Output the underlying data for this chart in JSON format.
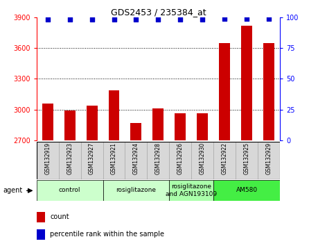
{
  "title": "GDS2453 / 235384_at",
  "samples": [
    "GSM132919",
    "GSM132923",
    "GSM132927",
    "GSM132921",
    "GSM132924",
    "GSM132928",
    "GSM132926",
    "GSM132930",
    "GSM132922",
    "GSM132925",
    "GSM132929"
  ],
  "counts": [
    3060,
    2990,
    3040,
    3190,
    2870,
    3010,
    2960,
    2960,
    3650,
    3820,
    3650
  ],
  "percentiles": [
    98,
    98,
    98,
    98,
    98,
    98,
    98,
    98,
    99,
    99,
    99
  ],
  "ylim_left": [
    2700,
    3900
  ],
  "ylim_right": [
    0,
    100
  ],
  "yticks_left": [
    2700,
    3000,
    3300,
    3600,
    3900
  ],
  "yticks_right": [
    0,
    25,
    50,
    75,
    100
  ],
  "bar_color": "#cc0000",
  "dot_color": "#0000cc",
  "groups": [
    {
      "label": "control",
      "start": 0,
      "end": 3,
      "color": "#ccffcc"
    },
    {
      "label": "rosiglitazone",
      "start": 3,
      "end": 6,
      "color": "#ccffcc"
    },
    {
      "label": "rosiglitazone\nand AGN193109",
      "start": 6,
      "end": 8,
      "color": "#aaffaa"
    },
    {
      "label": "AM580",
      "start": 8,
      "end": 11,
      "color": "#44ee44"
    }
  ],
  "legend_items": [
    {
      "label": "count",
      "color": "#cc0000"
    },
    {
      "label": "percentile rank within the sample",
      "color": "#0000cc"
    }
  ],
  "bg_color": "#ffffff",
  "plot_bg": "#ffffff",
  "label_bg": "#d8d8d8"
}
